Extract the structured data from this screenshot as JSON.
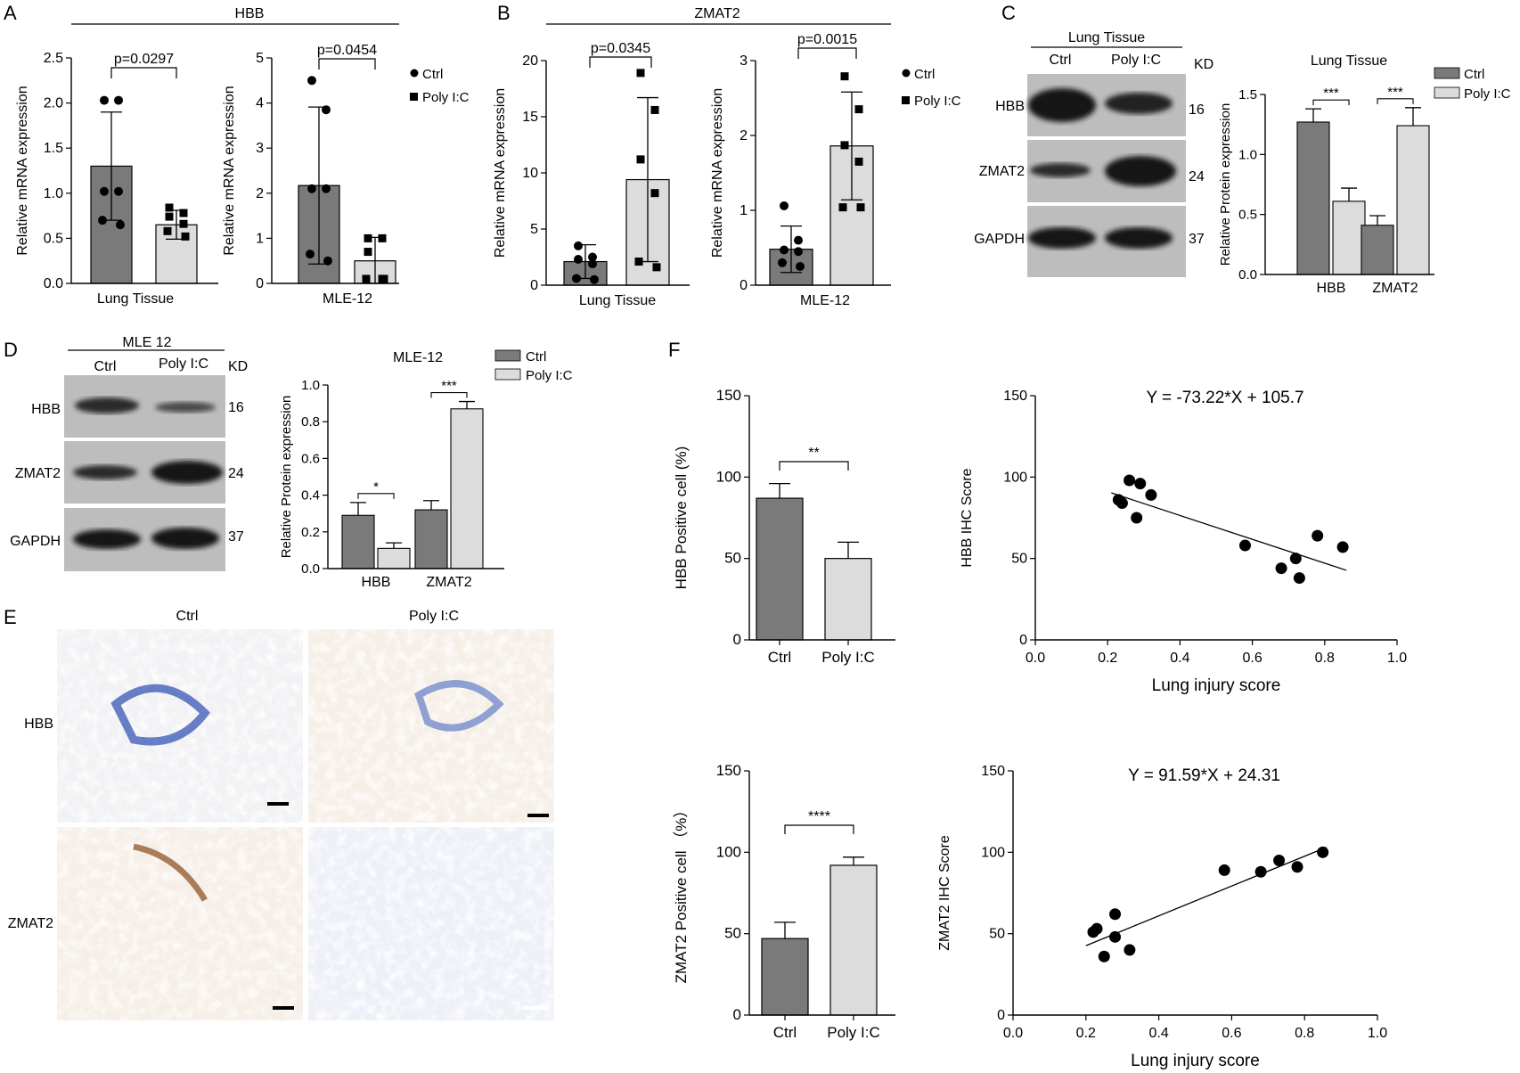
{
  "colors": {
    "ctrl": "#7a7a7a",
    "poly": "#dcdcdc",
    "line": "#000000",
    "blot_bg": "#bdbdbd",
    "band": "#151515",
    "ihc_blue": "#3557b8",
    "ihc_brown": "#9a5a28",
    "ihc_bg": "#f6efe8"
  },
  "panel_labels": {
    "A": "A",
    "B": "B",
    "C": "C",
    "D": "D",
    "E": "E",
    "F": "F"
  },
  "titles": {
    "a": "HBB",
    "b": "ZMAT2"
  },
  "legend": {
    "ctrl": "Ctrl",
    "poly": "Poly I:C"
  },
  "chart_data": [
    {
      "id": "A1",
      "type": "bar",
      "ylabel": "Relative mRNA expression",
      "xlabel": "Lung Tissue",
      "ylim": [
        0,
        2.5
      ],
      "yticks": [
        "0.0",
        "0.5",
        "1.0",
        "1.5",
        "2.0",
        "2.5"
      ],
      "series": [
        {
          "name": "Ctrl",
          "mean": 1.3,
          "sd": 0.6,
          "points": [
            2.03,
            2.03,
            1.02,
            1.02,
            0.7,
            0.65
          ]
        },
        {
          "name": "Poly I:C",
          "mean": 0.65,
          "sd": 0.16,
          "points": [
            0.84,
            0.78,
            0.74,
            0.66,
            0.58,
            0.52
          ]
        }
      ],
      "pvalue": "p=0.0297"
    },
    {
      "id": "A2",
      "type": "bar",
      "ylabel": "Relative mRNA expression",
      "xlabel": "MLE-12",
      "ylim": [
        0,
        5
      ],
      "yticks": [
        "0",
        "1",
        "2",
        "3",
        "4",
        "5"
      ],
      "series": [
        {
          "name": "Ctrl",
          "mean": 2.17,
          "sd": 1.74,
          "points": [
            4.5,
            3.85,
            2.1,
            2.1,
            0.65,
            0.5
          ]
        },
        {
          "name": "Poly I:C",
          "mean": 0.5,
          "sd": 0.52,
          "points": [
            1.0,
            1.0,
            0.7,
            0.1,
            0.1,
            0.1
          ]
        }
      ],
      "pvalue": "p=0.0454"
    },
    {
      "id": "B1",
      "type": "bar",
      "ylabel": "Relative mRNA expression",
      "xlabel": "Lung Tissue",
      "ylim": [
        0,
        20
      ],
      "yticks": [
        "0",
        "5",
        "10",
        "15",
        "20"
      ],
      "series": [
        {
          "name": "Ctrl",
          "mean": 2.1,
          "sd": 1.5,
          "points": [
            3.5,
            2.5,
            2.3,
            1.9,
            0.6,
            0.5
          ]
        },
        {
          "name": "Poly I:C",
          "mean": 9.4,
          "sd": 7.3,
          "points": [
            18.9,
            15.6,
            11.2,
            8.2,
            2.1,
            1.6
          ]
        }
      ],
      "pvalue": "p=0.0345"
    },
    {
      "id": "B2",
      "type": "bar",
      "ylabel": "Relative mRNA expression",
      "xlabel": "MLE-12",
      "ylim": [
        0,
        3
      ],
      "yticks": [
        "0",
        "1",
        "2",
        "3"
      ],
      "series": [
        {
          "name": "Ctrl",
          "mean": 0.48,
          "sd": 0.31,
          "points": [
            1.06,
            0.6,
            0.47,
            0.45,
            0.3,
            0.25
          ]
        },
        {
          "name": "Poly I:C",
          "mean": 1.86,
          "sd": 0.72,
          "points": [
            2.79,
            2.35,
            1.87,
            1.65,
            1.04,
            1.04
          ]
        }
      ],
      "pvalue": "p=0.0015"
    },
    {
      "id": "C",
      "type": "bar",
      "title": "Lung Tissue",
      "ylabel": "Relative Protein expression",
      "ylim": [
        0,
        1.5
      ],
      "yticks": [
        "0.0",
        "0.5",
        "1.0",
        "1.5"
      ],
      "categories": [
        "HBB",
        "ZMAT2"
      ],
      "series": [
        {
          "name": "Ctrl",
          "values": [
            1.27,
            0.41
          ],
          "errors": [
            0.11,
            0.08
          ]
        },
        {
          "name": "Poly I:C",
          "values": [
            0.61,
            1.24
          ],
          "errors": [
            0.11,
            0.15
          ]
        }
      ],
      "significance": [
        "***",
        "***"
      ]
    },
    {
      "id": "D",
      "type": "bar",
      "title": "MLE-12",
      "ylabel": "Relative Protein expression",
      "ylim": [
        0,
        1.0
      ],
      "yticks": [
        "0.0",
        "0.2",
        "0.4",
        "0.6",
        "0.8",
        "1.0"
      ],
      "categories": [
        "HBB",
        "ZMAT2"
      ],
      "series": [
        {
          "name": "Ctrl",
          "values": [
            0.29,
            0.32
          ],
          "errors": [
            0.07,
            0.05
          ]
        },
        {
          "name": "Poly I:C",
          "values": [
            0.11,
            0.87
          ],
          "errors": [
            0.03,
            0.04
          ]
        }
      ],
      "significance": [
        "*",
        "***"
      ]
    },
    {
      "id": "F1",
      "type": "bar",
      "ylabel": "HBB Positive cell (%)",
      "ylim": [
        0,
        150
      ],
      "yticks": [
        "0",
        "50",
        "100",
        "150"
      ],
      "categories": [
        "Ctrl",
        "Poly I:C"
      ],
      "values": [
        87,
        50
      ],
      "errors": [
        9,
        10
      ],
      "significance": "**"
    },
    {
      "id": "F2",
      "type": "scatter",
      "equation": "Y = -73.22*X + 105.7",
      "xlabel": "Lung injury score",
      "ylabel": "HBB IHC Score",
      "xlim": [
        0,
        1.0
      ],
      "ylim": [
        0,
        150
      ],
      "xticks": [
        "0.0",
        "0.2",
        "0.4",
        "0.6",
        "0.8",
        "1.0"
      ],
      "yticks": [
        "0",
        "50",
        "100",
        "150"
      ],
      "x": [
        0.23,
        0.24,
        0.26,
        0.28,
        0.29,
        0.32,
        0.58,
        0.68,
        0.72,
        0.73,
        0.78,
        0.85
      ],
      "y": [
        86,
        84,
        98,
        75,
        96,
        89,
        58,
        44,
        50,
        38,
        64,
        57
      ],
      "fit": {
        "slope": -73.22,
        "intercept": 105.7,
        "xrange": [
          0.21,
          0.86
        ]
      }
    },
    {
      "id": "F3",
      "type": "bar",
      "ylabel": "ZMAT2 Positive cell （%）",
      "ylim": [
        0,
        150
      ],
      "yticks": [
        "0",
        "50",
        "100",
        "150"
      ],
      "categories": [
        "Ctrl",
        "Poly I:C"
      ],
      "values": [
        47,
        92
      ],
      "errors": [
        10,
        5
      ],
      "significance": "****"
    },
    {
      "id": "F4",
      "type": "scatter",
      "equation": "Y = 91.59*X + 24.31",
      "xlabel": "Lung injury score",
      "ylabel": "ZMAT2 IHC Score",
      "xlim": [
        0,
        1.0
      ],
      "ylim": [
        0,
        150
      ],
      "xticks": [
        "0.0",
        "0.2",
        "0.4",
        "0.6",
        "0.8",
        "1.0"
      ],
      "yticks": [
        "0",
        "50",
        "100",
        "150"
      ],
      "x": [
        0.22,
        0.23,
        0.25,
        0.28,
        0.28,
        0.32,
        0.58,
        0.68,
        0.73,
        0.78,
        0.85
      ],
      "y": [
        51,
        53,
        36,
        62,
        48,
        40,
        89,
        88,
        95,
        91,
        100
      ],
      "fit": {
        "slope": 91.59,
        "intercept": 24.31,
        "xrange": [
          0.2,
          0.86
        ]
      }
    }
  ],
  "blots": {
    "c": {
      "header": "Lung Tissue",
      "lanes": [
        "Ctrl",
        "Poly I:C"
      ],
      "kd": "KD",
      "rows": [
        {
          "label": "HBB",
          "kd": "16"
        },
        {
          "label": "ZMAT2",
          "kd": "24"
        },
        {
          "label": "GAPDH",
          "kd": "37"
        }
      ]
    },
    "d": {
      "header": "MLE 12",
      "lanes": [
        "Ctrl",
        "Poly I:C"
      ],
      "kd": "KD",
      "rows": [
        {
          "label": "HBB",
          "kd": "16"
        },
        {
          "label": "ZMAT2",
          "kd": "24"
        },
        {
          "label": "GAPDH",
          "kd": "37"
        }
      ]
    }
  },
  "ihc": {
    "columns": [
      "Ctrl",
      "Poly I:C"
    ],
    "rows": [
      "HBB",
      "ZMAT2"
    ]
  }
}
